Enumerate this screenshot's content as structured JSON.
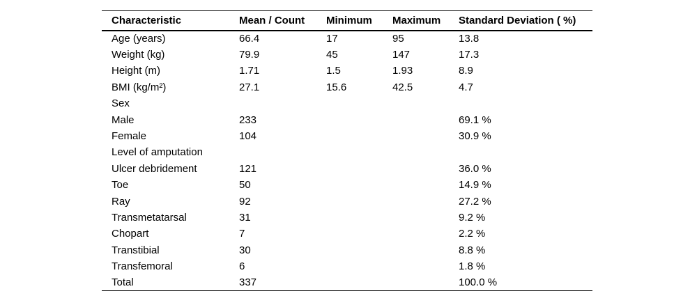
{
  "table": {
    "title_semantic": "Patient characteristics table",
    "columns": [
      "Characteristic",
      "Mean / Count",
      "Minimum",
      "Maximum",
      "Standard Deviation ( %)"
    ],
    "rows": [
      [
        "Age (years)",
        "66.4",
        "17",
        "95",
        "13.8"
      ],
      [
        "Weight (kg)",
        "79.9",
        "45",
        "147",
        "17.3"
      ],
      [
        "Height (m)",
        "1.71",
        "1.5",
        "1.93",
        "8.9"
      ],
      [
        "BMI (kg/m²)",
        "27.1",
        "15.6",
        "42.5",
        "4.7"
      ],
      [
        "Sex",
        "",
        "",
        "",
        ""
      ],
      [
        "Male",
        "233",
        "",
        "",
        "69.1 %"
      ],
      [
        "Female",
        "104",
        "",
        "",
        "30.9 %"
      ],
      [
        "Level of amputation",
        "",
        "",
        "",
        ""
      ],
      [
        "Ulcer debridement",
        "121",
        "",
        "",
        "36.0 %"
      ],
      [
        "Toe",
        "50",
        "",
        "",
        "14.9 %"
      ],
      [
        "Ray",
        "92",
        "",
        "",
        "27.2 %"
      ],
      [
        "Transmetatarsal",
        "31",
        "",
        "",
        "9.2 %"
      ],
      [
        "Chopart",
        "7",
        "",
        "",
        "2.2 %"
      ],
      [
        "Transtibial",
        "30",
        "",
        "",
        "8.8 %"
      ],
      [
        "Transfemoral",
        "6",
        "",
        "",
        "1.8 %"
      ],
      [
        "Total",
        "337",
        "",
        "",
        "100.0 %"
      ]
    ],
    "colors": {
      "text": "#000000",
      "background": "#ffffff",
      "rule": "#000000"
    }
  }
}
